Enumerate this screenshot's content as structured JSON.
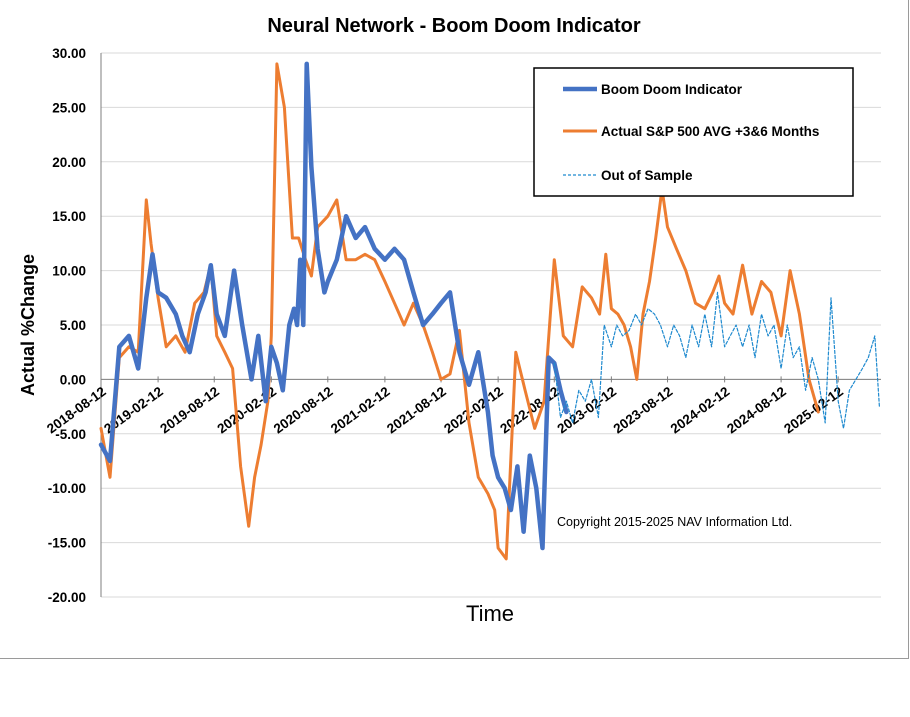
{
  "chart_data": {
    "type": "line",
    "title": "Neural Network - Boom Doom  Indicator",
    "xlabel": "Time",
    "ylabel": "Actual  %Change",
    "ylim": [
      -20,
      30
    ],
    "yticks": [
      30,
      25,
      20,
      15,
      10,
      5,
      0,
      -5,
      -10,
      -15,
      -20
    ],
    "ytick_labels": [
      "30.00",
      "25.00",
      "20.00",
      "15.00",
      "10.00",
      "5.00",
      "0.00",
      "-5.00",
      "-10.00",
      "-15.00",
      "-20.00"
    ],
    "xlim": [
      "2018-08-12",
      "2025-06-30"
    ],
    "xtick_labels": [
      "2018-08-12",
      "2019-02-12",
      "2019-08-12",
      "2020-02-12",
      "2020-08-12",
      "2021-02-12",
      "2021-08-12",
      "2022-02-12",
      "2022-08-12",
      "2023-02-12",
      "2023-08-12",
      "2024-02-12",
      "2024-08-12",
      "2025-02-12"
    ],
    "grid": "horizontal",
    "legend_position": "top-right",
    "annotation": "Copyright 2015-2025 NAV Information Ltd.",
    "series": [
      {
        "name": "Boom Doom Indicator",
        "color": "#4472C4",
        "style": "solid-thick",
        "x": [
          "2018-08-12",
          "2018-09-10",
          "2018-10-10",
          "2018-11-10",
          "2018-12-10",
          "2019-01-05",
          "2019-01-25",
          "2019-02-12",
          "2019-03-10",
          "2019-04-10",
          "2019-05-01",
          "2019-05-25",
          "2019-06-20",
          "2019-07-15",
          "2019-08-01",
          "2019-08-20",
          "2019-09-15",
          "2019-10-15",
          "2019-11-10",
          "2019-12-10",
          "2020-01-01",
          "2020-01-25",
          "2020-02-12",
          "2020-03-01",
          "2020-03-20",
          "2020-04-10",
          "2020-04-25",
          "2020-05-05",
          "2020-05-15",
          "2020-05-25",
          "2020-06-05",
          "2020-06-20",
          "2020-07-10",
          "2020-08-01",
          "2020-08-12",
          "2020-09-10",
          "2020-10-10",
          "2020-11-10",
          "2020-12-10",
          "2021-01-10",
          "2021-02-12",
          "2021-03-15",
          "2021-04-15",
          "2021-05-15",
          "2021-06-15",
          "2021-07-15",
          "2021-08-12",
          "2021-09-10",
          "2021-10-10",
          "2021-11-10",
          "2021-12-10",
          "2022-01-10",
          "2022-01-25",
          "2022-02-12",
          "2022-03-05",
          "2022-03-25",
          "2022-04-15",
          "2022-05-05",
          "2022-05-25",
          "2022-06-15",
          "2022-07-05",
          "2022-07-25",
          "2022-08-12",
          "2022-09-01",
          "2022-09-20"
        ],
        "y": [
          -6,
          -7.5,
          3,
          4,
          1,
          7.5,
          11.5,
          8,
          7.5,
          6,
          4,
          2.5,
          6,
          8,
          10.5,
          6,
          4,
          10,
          5,
          0,
          4,
          -2,
          3,
          1.5,
          -1,
          5,
          6.5,
          5,
          11,
          5,
          29,
          19.5,
          12,
          8,
          9,
          11,
          15,
          13,
          14,
          12,
          11,
          12,
          11,
          8,
          5,
          6,
          7,
          8,
          2.5,
          -0.5,
          2.5,
          -3,
          -7,
          -9,
          -10,
          -12,
          -8,
          -14,
          -7,
          -10,
          -15.5,
          2,
          1.5,
          -1,
          -3
        ]
      },
      {
        "name": "Actual S&P 500 AVG +3&6 Months",
        "color": "#ED7D31",
        "style": "solid",
        "x": [
          "2018-08-12",
          "2018-09-10",
          "2018-10-10",
          "2018-11-10",
          "2018-12-10",
          "2019-01-05",
          "2019-01-20",
          "2019-02-12",
          "2019-03-10",
          "2019-04-10",
          "2019-05-10",
          "2019-06-10",
          "2019-07-10",
          "2019-08-01",
          "2019-08-20",
          "2019-09-15",
          "2019-10-10",
          "2019-11-05",
          "2019-12-01",
          "2019-12-20",
          "2020-01-10",
          "2020-02-01",
          "2020-02-12",
          "2020-03-01",
          "2020-03-25",
          "2020-04-20",
          "2020-05-10",
          "2020-06-01",
          "2020-06-20",
          "2020-07-10",
          "2020-08-12",
          "2020-09-10",
          "2020-10-10",
          "2020-11-10",
          "2020-12-10",
          "2021-01-10",
          "2021-02-12",
          "2021-03-15",
          "2021-04-15",
          "2021-05-15",
          "2021-06-15",
          "2021-07-15",
          "2021-08-12",
          "2021-09-10",
          "2021-10-10",
          "2021-11-10",
          "2021-12-10",
          "2022-01-10",
          "2022-02-01",
          "2022-02-12",
          "2022-03-10",
          "2022-04-10",
          "2022-05-10",
          "2022-06-10",
          "2022-07-10",
          "2022-08-12",
          "2022-09-10",
          "2022-10-10",
          "2022-11-10",
          "2022-12-10",
          "2023-01-05",
          "2023-01-25",
          "2023-02-12",
          "2023-03-05",
          "2023-03-25",
          "2023-04-15",
          "2023-05-05",
          "2023-05-25",
          "2023-06-15",
          "2023-07-05",
          "2023-07-25",
          "2023-08-12",
          "2023-09-10",
          "2023-10-10",
          "2023-11-10",
          "2023-12-10",
          "2024-01-05",
          "2024-01-25",
          "2024-02-12",
          "2024-03-10",
          "2024-04-10",
          "2024-05-10",
          "2024-06-10",
          "2024-07-10",
          "2024-08-12",
          "2024-09-10",
          "2024-10-10",
          "2024-11-10",
          "2024-12-10"
        ],
        "y": [
          -4.5,
          -9,
          2,
          3,
          2.5,
          16.5,
          12.5,
          7.5,
          3,
          4,
          2.5,
          7,
          8,
          10.5,
          4,
          2.5,
          1,
          -8,
          -13.5,
          -9,
          -6,
          -2,
          4,
          29,
          25,
          13,
          13,
          11,
          9.5,
          14,
          15,
          16.5,
          11,
          11,
          11.5,
          11,
          9,
          7,
          5,
          7,
          5,
          2.5,
          0,
          0.5,
          4.5,
          -4,
          -9,
          -10.5,
          -12,
          -15.5,
          -16.5,
          2.5,
          -1,
          -4.5,
          -2,
          11,
          4,
          3,
          8.5,
          7.5,
          6,
          11.5,
          6.5,
          6,
          5,
          3,
          0,
          6,
          9,
          13,
          17.5,
          14,
          12,
          10,
          7,
          6.5,
          8,
          9.5,
          7,
          6,
          10.5,
          6,
          9,
          8,
          4,
          10,
          6,
          0,
          -3
        ]
      },
      {
        "name": "Out of Sample",
        "color": "#1F8ACF",
        "style": "dashed",
        "x": [
          "2022-08-12",
          "2022-09-01",
          "2022-09-20",
          "2022-10-10",
          "2022-10-30",
          "2022-11-20",
          "2022-12-10",
          "2023-01-01",
          "2023-01-20",
          "2023-02-12",
          "2023-03-01",
          "2023-03-20",
          "2023-04-10",
          "2023-05-01",
          "2023-05-20",
          "2023-06-10",
          "2023-07-01",
          "2023-07-20",
          "2023-08-12",
          "2023-09-01",
          "2023-09-20",
          "2023-10-10",
          "2023-10-30",
          "2023-11-20",
          "2023-12-10",
          "2024-01-01",
          "2024-01-20",
          "2024-02-12",
          "2024-03-01",
          "2024-03-20",
          "2024-04-10",
          "2024-05-01",
          "2024-05-20",
          "2024-06-10",
          "2024-07-01",
          "2024-07-20",
          "2024-08-12",
          "2024-09-01",
          "2024-09-20",
          "2024-10-10",
          "2024-10-30",
          "2024-11-20",
          "2024-12-10",
          "2025-01-01",
          "2025-01-20",
          "2025-02-12",
          "2025-03-01",
          "2025-03-20",
          "2025-04-10",
          "2025-05-01",
          "2025-05-20",
          "2025-06-10",
          "2025-06-25"
        ],
        "y": [
          1.5,
          -3.5,
          -2,
          -4,
          -1,
          -2,
          0,
          -3.5,
          5,
          3,
          5,
          4,
          4.5,
          6,
          5,
          6.5,
          6,
          5,
          3,
          5,
          4,
          2,
          5,
          3,
          6,
          3,
          8,
          3,
          4,
          5,
          3,
          5,
          2,
          6,
          4,
          5,
          1,
          5,
          2,
          3,
          -1,
          2,
          0,
          -4,
          7.5,
          -2,
          -4.5,
          -1,
          0,
          1,
          2,
          4,
          -2.5
        ]
      }
    ]
  }
}
